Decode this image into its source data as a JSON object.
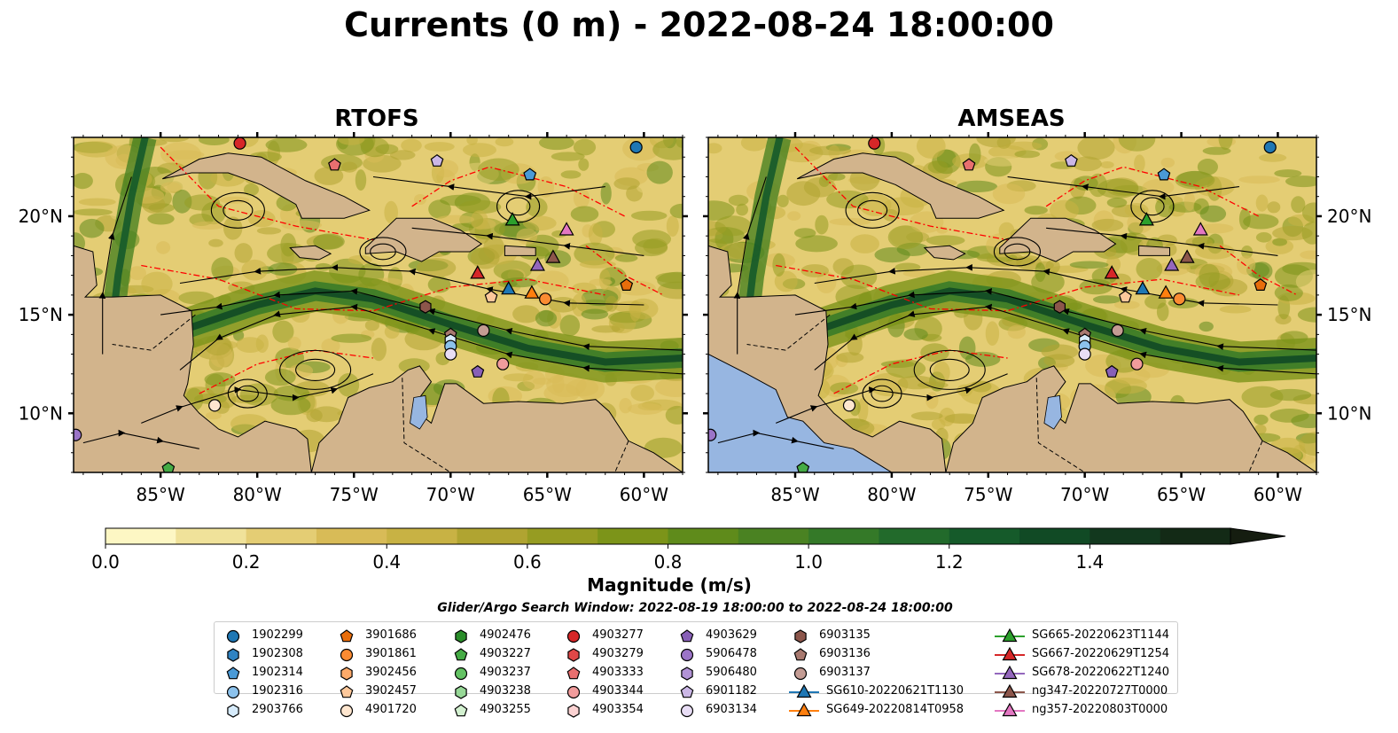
{
  "title": "Currents (0 m) - 2022-08-24 18:00:00",
  "panels": [
    {
      "title": "RTOFS"
    },
    {
      "title": "AMSEAS"
    }
  ],
  "colorbar": {
    "label": "Magnitude (m/s)",
    "ticks": [
      "0.0",
      "0.2",
      "0.4",
      "0.6",
      "0.8",
      "1.0",
      "1.2",
      "1.4"
    ],
    "extend": "max"
  },
  "search_window": "Glider/Argo Search Window: 2022-08-19 18:00:00 to 2022-08-24 18:00:00",
  "colors": {
    "land": "#d2b48c",
    "water": "#97b6e1",
    "streamline": "#000000",
    "eez_boundary": "#ff0000",
    "colormap": [
      "#fdf7c4",
      "#f0e29a",
      "#e4cd74",
      "#d8bb57",
      "#c8b244",
      "#b0a431",
      "#969c22",
      "#7c9419",
      "#5f8b1b",
      "#4a8222",
      "#347928",
      "#226a2b",
      "#155a2a",
      "#114a25",
      "#12381e",
      "#132a16",
      "#151d10"
    ]
  },
  "chart_data": {
    "type": "map",
    "lat_range": [
      7,
      24
    ],
    "lon_range": [
      -89.5,
      -58
    ],
    "x_ticks": [
      "85°W",
      "80°W",
      "75°W",
      "70°W",
      "65°W",
      "60°W"
    ],
    "y_ticks": [
      "20°N",
      "15°N",
      "10°N"
    ],
    "variable": "surface current magnitude (m/s)",
    "colorbar_range": [
      0.0,
      1.6
    ],
    "legend": [
      {
        "label": "1902299",
        "marker": "circle",
        "color": "#1f77b4"
      },
      {
        "label": "1902308",
        "marker": "hexagon",
        "color": "#2f83c2"
      },
      {
        "label": "1902314",
        "marker": "pentagon",
        "color": "#4a9ad6"
      },
      {
        "label": "1902316",
        "marker": "circle",
        "color": "#8cc2ec"
      },
      {
        "label": "2903766",
        "marker": "hexagon",
        "color": "#d6ebfb"
      },
      {
        "label": "3901686",
        "marker": "pentagon",
        "color": "#e86d0b"
      },
      {
        "label": "3901861",
        "marker": "circle",
        "color": "#fb8b32"
      },
      {
        "label": "3902456",
        "marker": "hexagon",
        "color": "#fdaa6a"
      },
      {
        "label": "3902457",
        "marker": "pentagon",
        "color": "#fdc89b"
      },
      {
        "label": "4901720",
        "marker": "circle",
        "color": "#fee6cf"
      },
      {
        "label": "4902476",
        "marker": "hexagon",
        "color": "#2a8d2a"
      },
      {
        "label": "4903227",
        "marker": "pentagon",
        "color": "#45ab45"
      },
      {
        "label": "4903237",
        "marker": "circle",
        "color": "#63c263"
      },
      {
        "label": "4903238",
        "marker": "hexagon",
        "color": "#97d897"
      },
      {
        "label": "4903255",
        "marker": "pentagon",
        "color": "#d3f1d0"
      },
      {
        "label": "4903277",
        "marker": "circle",
        "color": "#d62728"
      },
      {
        "label": "4903279",
        "marker": "hexagon",
        "color": "#df4747"
      },
      {
        "label": "4903333",
        "marker": "pentagon",
        "color": "#e86f6f"
      },
      {
        "label": "4903344",
        "marker": "circle",
        "color": "#f19c9c"
      },
      {
        "label": "4903354",
        "marker": "hexagon",
        "color": "#fbd2d2"
      },
      {
        "label": "4903629",
        "marker": "pentagon",
        "color": "#8860b7"
      },
      {
        "label": "5906478",
        "marker": "circle",
        "color": "#9b74c7"
      },
      {
        "label": "5906480",
        "marker": "hexagon",
        "color": "#b293d6"
      },
      {
        "label": "6901182",
        "marker": "pentagon",
        "color": "#cbb7e6"
      },
      {
        "label": "6903134",
        "marker": "circle",
        "color": "#e8ddf5"
      },
      {
        "label": "6903135",
        "marker": "hexagon",
        "color": "#8c564b"
      },
      {
        "label": "6903136",
        "marker": "pentagon",
        "color": "#a8796f"
      },
      {
        "label": "6903137",
        "marker": "circle",
        "color": "#c49c94"
      },
      {
        "label": "SG610-20220621T1130",
        "marker": "triangle-line",
        "color": "#1f77b4"
      },
      {
        "label": "SG649-20220814T0958",
        "marker": "triangle-line",
        "color": "#ff7f0e"
      },
      {
        "label": "SG665-20220623T1144",
        "marker": "triangle-line",
        "color": "#2ca02c"
      },
      {
        "label": "SG667-20220629T1254",
        "marker": "triangle-line",
        "color": "#d62728"
      },
      {
        "label": "SG678-20220622T1240",
        "marker": "triangle-line",
        "color": "#9467bd"
      },
      {
        "label": "ng347-20220727T0000",
        "marker": "triangle-line",
        "color": "#8c564b"
      },
      {
        "label": "ng357-20220803T0000",
        "marker": "triangle-line",
        "color": "#e377c2"
      }
    ],
    "positions": [
      {
        "id": "1902299",
        "lon": -60.4,
        "lat": 23.5
      },
      {
        "id": "4903277",
        "lon": -80.9,
        "lat": 23.7
      },
      {
        "id": "4903333",
        "lon": -76.0,
        "lat": 22.6
      },
      {
        "id": "6901182",
        "lon": -70.7,
        "lat": 22.8
      },
      {
        "id": "1902314",
        "lon": -65.9,
        "lat": 22.1
      },
      {
        "id": "SG665-20220623T1144",
        "lon": -66.8,
        "lat": 19.8
      },
      {
        "id": "ng357-20220803T0000",
        "lon": -64.0,
        "lat": 19.3
      },
      {
        "id": "SG678-20220622T1240",
        "lon": -65.5,
        "lat": 17.5
      },
      {
        "id": "ng347-20220727T0000",
        "lon": -64.7,
        "lat": 17.9
      },
      {
        "id": "SG667-20220629T1254",
        "lon": -68.6,
        "lat": 17.1
      },
      {
        "id": "SG610-20220621T1130",
        "lon": -67.0,
        "lat": 16.3
      },
      {
        "id": "SG649-20220814T0958",
        "lon": -65.8,
        "lat": 16.1
      },
      {
        "id": "3902457",
        "lon": -67.9,
        "lat": 15.9
      },
      {
        "id": "3901861",
        "lon": -65.1,
        "lat": 15.8
      },
      {
        "id": "3901686",
        "lon": -60.9,
        "lat": 16.5
      },
      {
        "id": "6903135",
        "lon": -71.3,
        "lat": 15.4
      },
      {
        "id": "6903136",
        "lon": -70.0,
        "lat": 14.0
      },
      {
        "id": "2903766",
        "lon": -70.0,
        "lat": 13.7
      },
      {
        "id": "6903137",
        "lon": -68.3,
        "lat": 14.2
      },
      {
        "id": "1902316",
        "lon": -70.0,
        "lat": 13.4
      },
      {
        "id": "6903134",
        "lon": -70.0,
        "lat": 13.0
      },
      {
        "id": "4903344",
        "lon": -67.3,
        "lat": 12.5
      },
      {
        "id": "4903629",
        "lon": -68.6,
        "lat": 12.1
      },
      {
        "id": "4901720",
        "lon": -82.2,
        "lat": 10.4
      },
      {
        "id": "5906478",
        "lon": -89.4,
        "lat": 8.9
      },
      {
        "id": "4903227",
        "lon": -84.6,
        "lat": 7.2
      }
    ]
  }
}
